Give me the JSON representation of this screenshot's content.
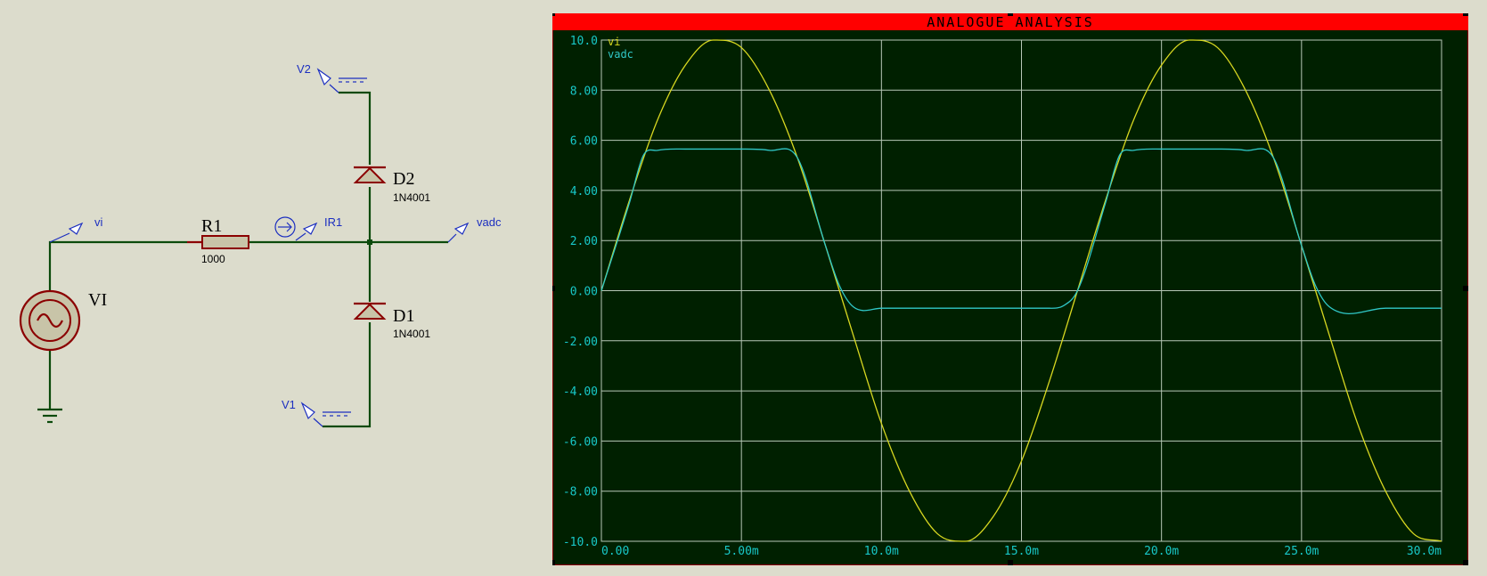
{
  "schematic": {
    "source": {
      "ref": "VI"
    },
    "resistor": {
      "ref": "R1",
      "value": "1000"
    },
    "diode_top": {
      "ref": "D2",
      "model": "1N4001"
    },
    "diode_bottom": {
      "ref": "D1",
      "model": "1N4001"
    },
    "probes": {
      "vi": "vi",
      "vadc": "vadc",
      "ir1": "IR1",
      "v1": "V1",
      "v2": "V2"
    }
  },
  "graph": {
    "title": "ANALOGUE ANALYSIS",
    "colors": {
      "title_bar": "#ff0000",
      "background": "#002000",
      "grid": "#b8c8b8",
      "ticks": "#18c8c8",
      "vi": "#d8d820",
      "vadc": "#30c8c8"
    },
    "y_tick_labels": [
      "10.0",
      "8.00",
      "6.00",
      "4.00",
      "2.00",
      "0.00",
      "-2.00",
      "-4.00",
      "-6.00",
      "-8.00",
      "-10.0"
    ],
    "x_tick_labels": [
      "0.00",
      "5.00m",
      "10.0m",
      "15.0m",
      "20.0m",
      "25.0m",
      "30.0m"
    ]
  },
  "chart_data": {
    "type": "line",
    "title": "ANALOGUE ANALYSIS",
    "xlabel": "",
    "ylabel": "",
    "xlim": [
      0,
      0.03
    ],
    "ylim": [
      -10,
      10
    ],
    "grid": true,
    "legend": "top-left",
    "x_ticks": [
      0,
      0.005,
      0.01,
      0.015,
      0.02,
      0.025,
      0.03
    ],
    "y_ticks": [
      10,
      8,
      6,
      4,
      2,
      0,
      -2,
      -4,
      -6,
      -8,
      -10
    ],
    "series": [
      {
        "name": "vi",
        "color": "#d8d820",
        "x": [
          0,
          0.001,
          0.002,
          0.003,
          0.004,
          0.005,
          0.006,
          0.007,
          0.008,
          0.009,
          0.01,
          0.011,
          0.012,
          0.013,
          0.014,
          0.015,
          0.016,
          0.017,
          0.018,
          0.019,
          0.02,
          0.021,
          0.022,
          0.023,
          0.024,
          0.025,
          0.026,
          0.027,
          0.028,
          0.029,
          0.03
        ],
        "y": [
          0,
          3.6,
          6.8,
          9.0,
          10.0,
          9.7,
          8.0,
          5.3,
          1.8,
          -1.8,
          -5.3,
          -8.0,
          -9.7,
          -10.0,
          -9.0,
          -6.8,
          -3.6,
          0,
          3.6,
          6.8,
          9.0,
          10.0,
          9.7,
          8.0,
          5.3,
          1.8,
          -1.8,
          -5.3,
          -8.0,
          -9.7,
          -10.0
        ]
      },
      {
        "name": "vadc",
        "color": "#30c8c8",
        "x": [
          0,
          0.001,
          0.0015,
          0.002,
          0.003,
          0.004,
          0.005,
          0.006,
          0.007,
          0.008,
          0.0085,
          0.009,
          0.01,
          0.012,
          0.014,
          0.016,
          0.0165,
          0.017,
          0.018,
          0.0185,
          0.019,
          0.02,
          0.021,
          0.022,
          0.023,
          0.024,
          0.025,
          0.0255,
          0.026,
          0.028,
          0.03
        ],
        "y": [
          0,
          3.5,
          5.4,
          5.6,
          5.65,
          5.65,
          5.65,
          5.6,
          5.3,
          1.8,
          0.2,
          -0.65,
          -0.7,
          -0.7,
          -0.7,
          -0.7,
          -0.6,
          0,
          3.5,
          5.4,
          5.6,
          5.65,
          5.65,
          5.65,
          5.6,
          5.3,
          1.8,
          0.2,
          -0.65,
          -0.7,
          -0.7
        ]
      }
    ]
  }
}
